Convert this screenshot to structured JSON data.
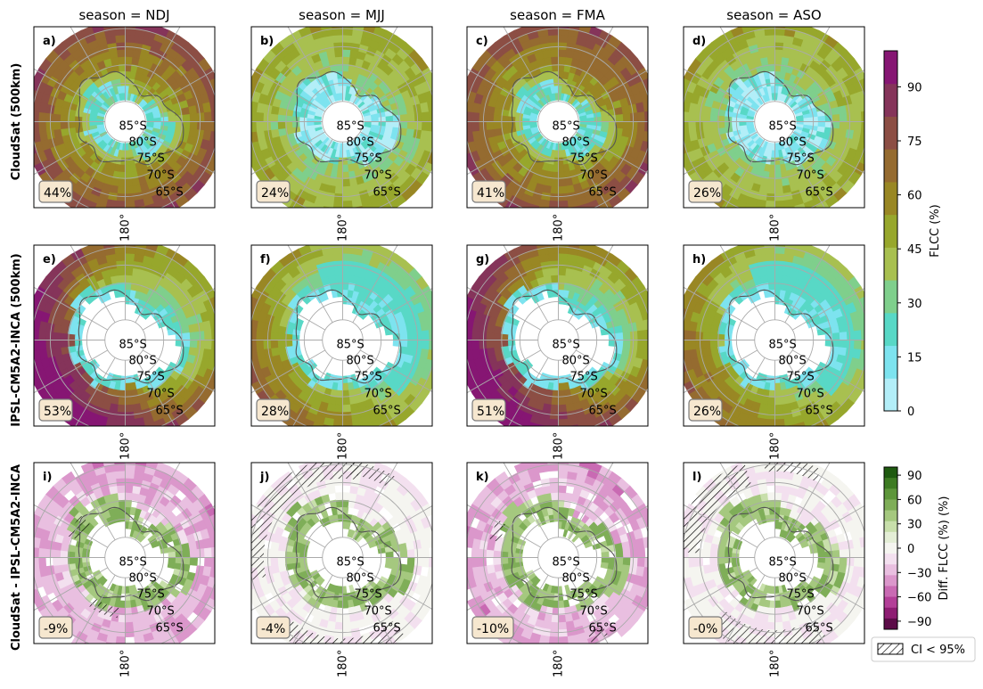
{
  "chart_data": {
    "type": "heatmap",
    "layout": "3x4 small multiples, south polar stereographic maps",
    "column_titles": [
      "season = NDJ",
      "season = MJJ",
      "season = FMA",
      "season = ASO"
    ],
    "row_labels": [
      "CloudSat (500km)",
      "IPSL-CM5A2-INCA (500km)",
      "CloudSat - IPSL-CM5A2-INCA"
    ],
    "lat_labels": [
      "85°S",
      "80°S",
      "75°S",
      "70°S",
      "65°S"
    ],
    "lon_label": "180°",
    "panels": [
      {
        "label": "a)",
        "row": 0,
        "col": 0,
        "stat": "44%"
      },
      {
        "label": "b)",
        "row": 0,
        "col": 1,
        "stat": "24%"
      },
      {
        "label": "c)",
        "row": 0,
        "col": 2,
        "stat": "41%"
      },
      {
        "label": "d)",
        "row": 0,
        "col": 3,
        "stat": "26%"
      },
      {
        "label": "e)",
        "row": 1,
        "col": 0,
        "stat": "53%"
      },
      {
        "label": "f)",
        "row": 1,
        "col": 1,
        "stat": "28%"
      },
      {
        "label": "g)",
        "row": 1,
        "col": 2,
        "stat": "51%"
      },
      {
        "label": "h)",
        "row": 1,
        "col": 3,
        "stat": "26%"
      },
      {
        "label": "i)",
        "row": 2,
        "col": 0,
        "stat": "-9%"
      },
      {
        "label": "j)",
        "row": 2,
        "col": 1,
        "stat": "-4%"
      },
      {
        "label": "k)",
        "row": 2,
        "col": 2,
        "stat": "-10%"
      },
      {
        "label": "l)",
        "row": 2,
        "col": 3,
        "stat": "-0%"
      }
    ],
    "colorbar_flcc": {
      "label": "FLCC (%)",
      "range": [
        0,
        100
      ],
      "ticks": [
        "0",
        "15",
        "30",
        "45",
        "60",
        "75",
        "90"
      ],
      "colors": [
        "#b3eef8",
        "#7de3ef",
        "#58d8c6",
        "#7fcf8c",
        "#a8c050",
        "#97a72c",
        "#998724",
        "#956b30",
        "#8c4e44",
        "#85345a",
        "#861673"
      ]
    },
    "colorbar_diff": {
      "label": "Diff. FLCC (%)  (%)",
      "range": [
        -100,
        100
      ],
      "ticks": [
        "90",
        "60",
        "30",
        "0",
        "−30",
        "−60",
        "−90"
      ],
      "colors": [
        "#1f5a10",
        "#3d7b22",
        "#5d963a",
        "#7fae58",
        "#a5c87f",
        "#c8dfab",
        "#e4eed6",
        "#f5f5f0",
        "#f3e0ef",
        "#e9bfe0",
        "#db97cb",
        "#c96ab3",
        "#b33f98",
        "#8e1d73",
        "#5c0c48"
      ]
    },
    "legend": {
      "hatch_label": "CI < 95%"
    }
  }
}
